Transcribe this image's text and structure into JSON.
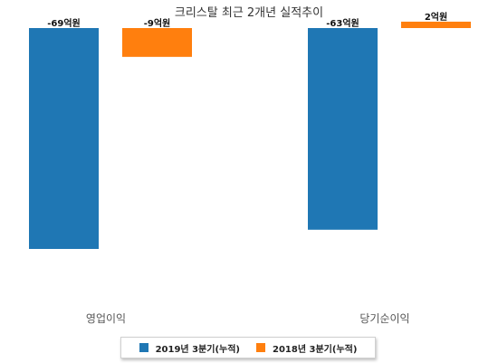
{
  "chart_data": {
    "type": "bar",
    "title": "크리스탈 최근 2개년 실적추이",
    "categories": [
      "영업이익",
      "당기순이익"
    ],
    "series": [
      {
        "name": "2019년 3분기(누적)",
        "color": "#1f77b4",
        "values": [
          -69,
          -63
        ],
        "labels": [
          "-69억원",
          "-63억원"
        ]
      },
      {
        "name": "2018년 3분기(누적)",
        "color": "#ff7f0e",
        "values": [
          -9,
          2
        ],
        "labels": [
          "-9억원",
          "2억원"
        ]
      }
    ],
    "ylim": [
      -69,
      2
    ],
    "grid": false,
    "legend_position": "bottom"
  }
}
